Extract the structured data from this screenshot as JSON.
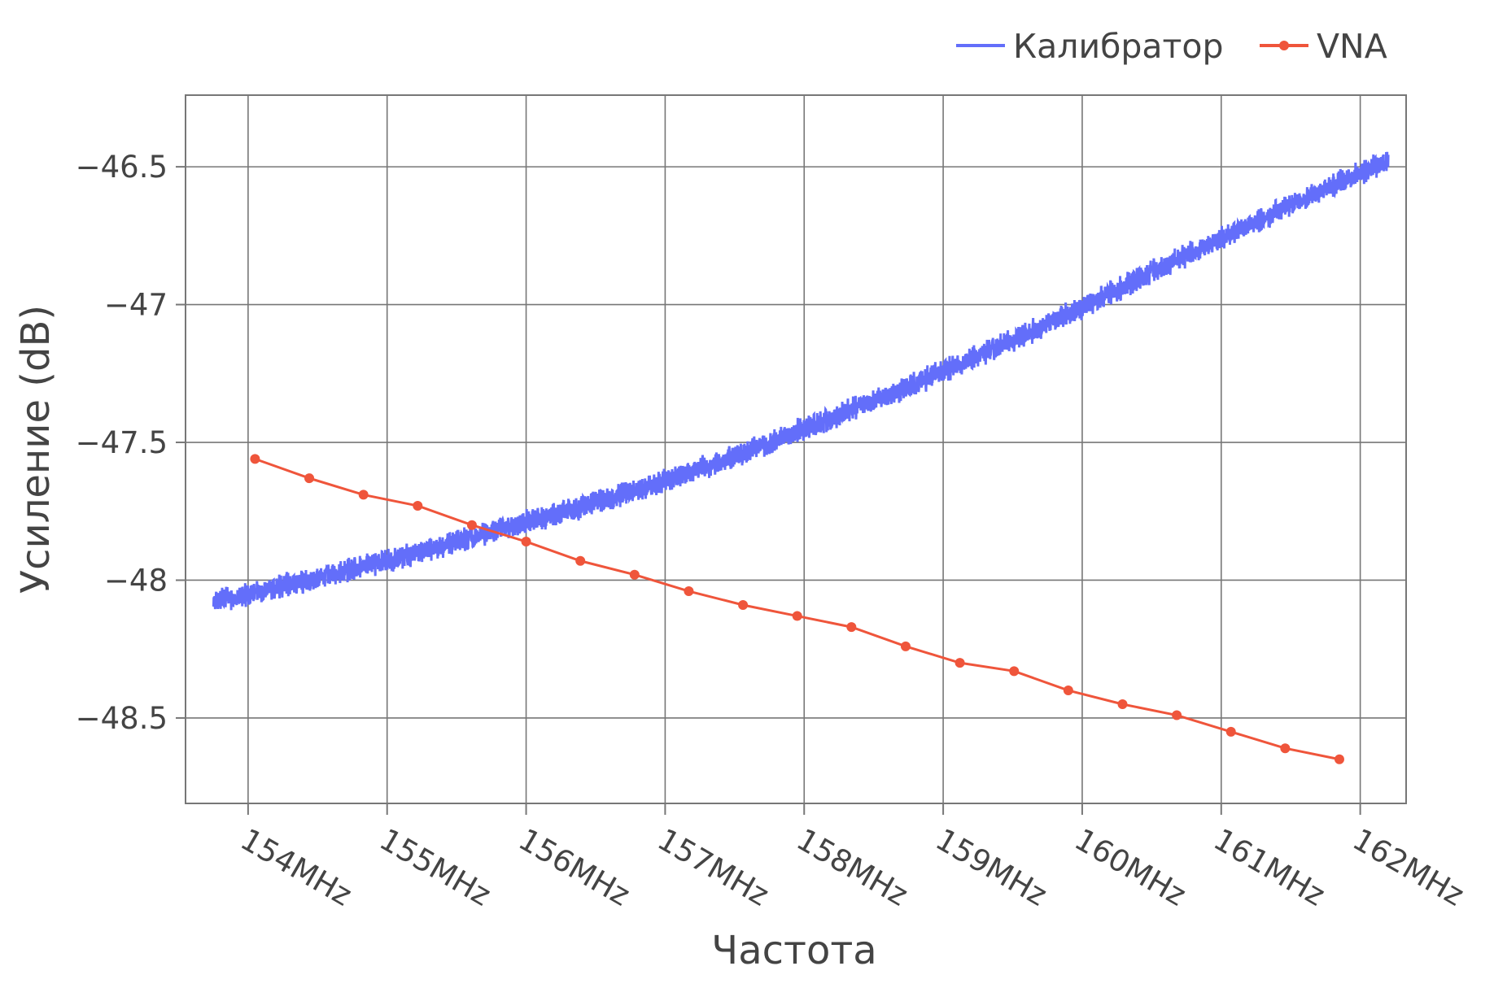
{
  "chart_data": {
    "type": "line",
    "title": "",
    "xlabel": "Частота",
    "ylabel": "Усиление (dB)",
    "xlim": [
      153.55,
      162.33
    ],
    "ylim": [
      -48.81,
      -46.24
    ],
    "x_ticks": [
      154,
      155,
      156,
      157,
      158,
      159,
      160,
      161,
      162
    ],
    "x_tick_labels": [
      "154MHz",
      "155MHz",
      "156MHz",
      "157MHz",
      "158MHz",
      "159MHz",
      "160MHz",
      "161MHz",
      "162MHz"
    ],
    "y_ticks": [
      -48.5,
      -48,
      -47.5,
      -47,
      -46.5
    ],
    "y_tick_labels": [
      "−48.5",
      "−48",
      "−47.5",
      "−47",
      "−46.5"
    ],
    "grid": true,
    "legend_position": "top-right",
    "series": [
      {
        "name": "Калибратор",
        "color": "#636efa",
        "mode": "noisy-band",
        "x": [
          153.75,
          154.0,
          154.5,
          155.0,
          155.5,
          156.0,
          156.5,
          157.0,
          157.5,
          158.0,
          158.5,
          159.0,
          159.5,
          160.0,
          160.5,
          161.0,
          161.5,
          162.0,
          162.2
        ],
        "values": [
          -48.08,
          -48.05,
          -47.99,
          -47.93,
          -47.86,
          -47.79,
          -47.72,
          -47.64,
          -47.55,
          -47.45,
          -47.35,
          -47.24,
          -47.13,
          -47.01,
          -46.88,
          -46.76,
          -46.64,
          -46.52,
          -46.48
        ],
        "noise_amplitude": 0.035
      },
      {
        "name": "VNA",
        "color": "#ef553b",
        "mode": "lines+markers",
        "x": [
          154.05,
          154.44,
          154.83,
          155.22,
          155.61,
          156.0,
          156.39,
          156.78,
          157.17,
          157.56,
          157.95,
          158.34,
          158.73,
          159.12,
          159.51,
          159.9,
          160.29,
          160.68,
          161.07,
          161.46,
          161.85
        ],
        "values": [
          -47.56,
          -47.63,
          -47.69,
          -47.73,
          -47.8,
          -47.86,
          -47.93,
          -47.98,
          -48.04,
          -48.09,
          -48.13,
          -48.17,
          -48.24,
          -48.3,
          -48.33,
          -48.4,
          -48.45,
          -48.49,
          -48.55,
          -48.61,
          -48.65
        ]
      }
    ]
  }
}
